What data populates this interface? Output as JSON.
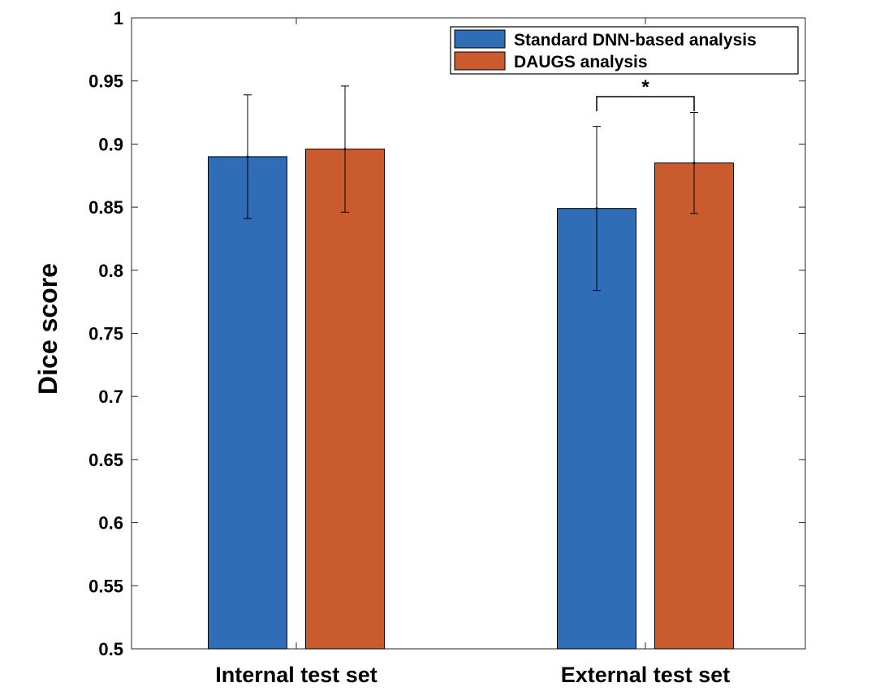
{
  "chart_data": {
    "type": "bar",
    "title": "",
    "xlabel": "",
    "ylabel": "Dice score",
    "ylim": [
      0.5,
      1
    ],
    "yticks": [
      0.5,
      0.55,
      0.6,
      0.65,
      0.7,
      0.75,
      0.8,
      0.85,
      0.9,
      0.95,
      1
    ],
    "ytick_labels": [
      "0.5",
      "0.55",
      "0.6",
      "0.65",
      "0.7",
      "0.75",
      "0.8",
      "0.85",
      "0.9",
      "0.95",
      "1"
    ],
    "categories": [
      "Internal test set",
      "External test set"
    ],
    "series": [
      {
        "name": "Standard DNN-based analysis",
        "color": "#2f6db6",
        "values": [
          0.89,
          0.849
        ],
        "error_low": [
          0.841,
          0.784
        ],
        "error_high": [
          0.939,
          0.914
        ]
      },
      {
        "name": "DAUGS analysis",
        "color": "#c95b2e",
        "values": [
          0.896,
          0.885
        ],
        "error_low": [
          0.846,
          0.845
        ],
        "error_high": [
          0.946,
          0.925
        ]
      }
    ],
    "legend_position": "top-right",
    "grid": false,
    "annotations": [
      {
        "text": "*",
        "category": "External test set",
        "type": "significance-bracket"
      }
    ]
  }
}
